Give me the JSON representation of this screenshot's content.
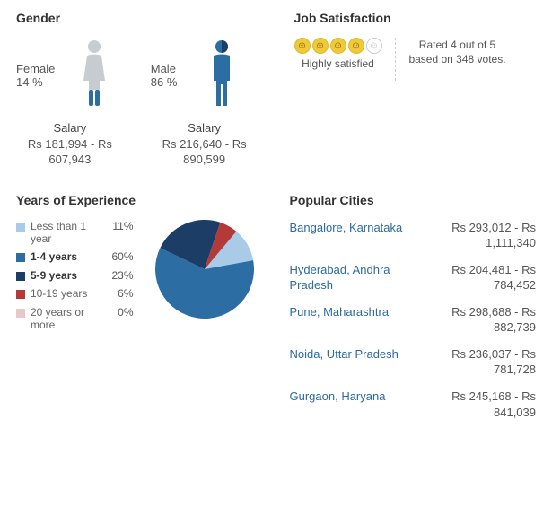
{
  "gender": {
    "title": "Gender",
    "female": {
      "label": "Female",
      "pct": "14 %",
      "salary_label": "Salary",
      "salary_range": "Rs 181,994 - Rs 607,943",
      "icon_color": "#c7ccd1",
      "accent_color": "#2c6da3"
    },
    "male": {
      "label": "Male",
      "pct": "86 %",
      "salary_label": "Salary",
      "salary_range": "Rs 216,640 - Rs 890,599",
      "icon_color": "#2c6da3",
      "accent_color": "#2c6da3"
    }
  },
  "job_satisfaction": {
    "title": "Job Satisfaction",
    "rating_filled": 4,
    "rating_total": 5,
    "label": "Highly satisfied",
    "summary": "Rated 4 out of 5 based on 348 votes.",
    "face_on_color": "#f0c93a",
    "face_off_color": "#ffffff"
  },
  "yoe": {
    "title": "Years of Experience",
    "items": [
      {
        "label": "Less than 1 year",
        "pct": "11%",
        "value": 11,
        "color": "#a9cbe8",
        "bold": false
      },
      {
        "label": "1-4 years",
        "pct": "60%",
        "value": 60,
        "color": "#2c6da3",
        "bold": true
      },
      {
        "label": "5-9 years",
        "pct": "23%",
        "value": 23,
        "color": "#1c3e66",
        "bold": true
      },
      {
        "label": "10-19 years",
        "pct": "6%",
        "value": 6,
        "color": "#b43a3a",
        "bold": false
      },
      {
        "label": "20 years or more",
        "pct": "0%",
        "value": 0,
        "color": "#e7c8c8",
        "bold": false
      }
    ],
    "pie": {
      "diameter": 110,
      "start_angle_deg": -50
    }
  },
  "cities": {
    "title": "Popular Cities",
    "items": [
      {
        "name": "Bangalore, Karnataka",
        "range": "Rs 293,012 - Rs 1,111,340"
      },
      {
        "name": "Hyderabad, Andhra Pradesh",
        "range": "Rs 204,481 - Rs 784,452"
      },
      {
        "name": "Pune, Maharashtra",
        "range": "Rs 298,688 - Rs 882,739"
      },
      {
        "name": "Noida, Uttar Pradesh",
        "range": "Rs 236,037 - Rs 781,728"
      },
      {
        "name": "Gurgaon, Haryana",
        "range": "Rs 245,168 - Rs 841,039"
      }
    ],
    "link_color": "#2b6aa3"
  },
  "style": {
    "background": "#ffffff",
    "title_color": "#333333",
    "text_color": "#555555"
  }
}
